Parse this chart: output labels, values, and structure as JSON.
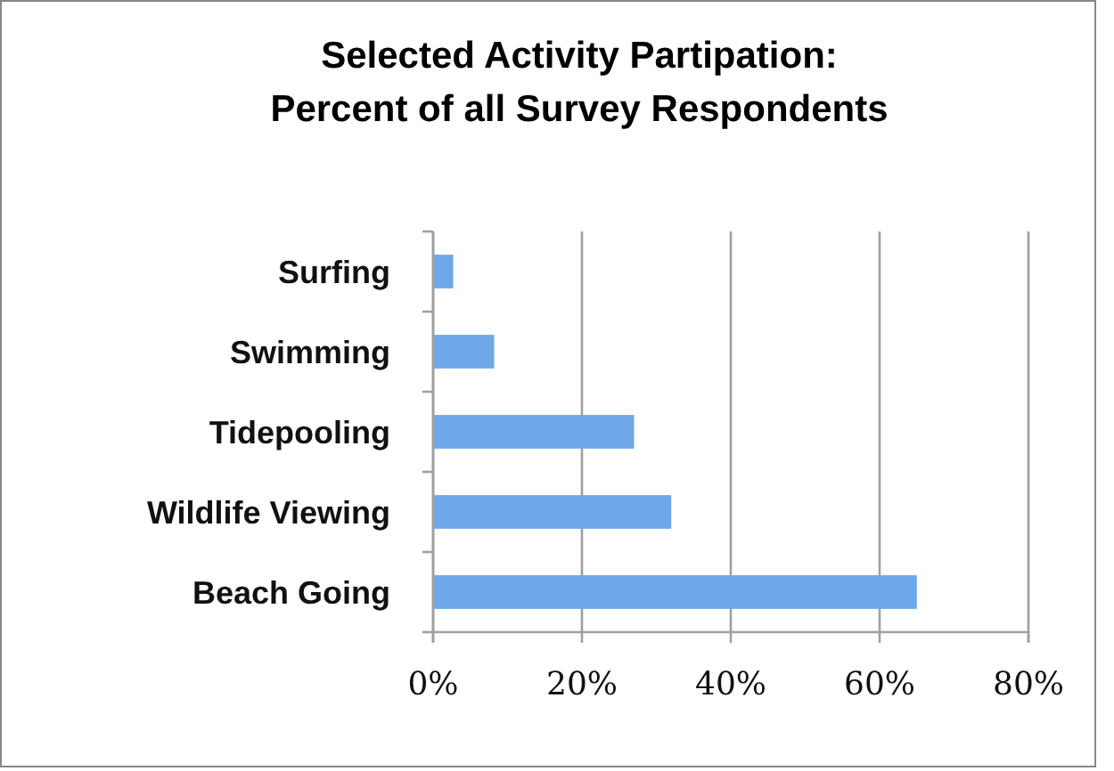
{
  "chart_data": {
    "type": "bar",
    "orientation": "horizontal",
    "title": "Selected Activity Partipation:\nPercent of all Survey Respondents",
    "categories": [
      "Surfing",
      "Swimming",
      "Tidepooling",
      "Wildlife Viewing",
      "Beach Going"
    ],
    "values": [
      2.7,
      8.2,
      27,
      32,
      65
    ],
    "color": "#6fa8e8",
    "xlim": [
      0,
      80
    ],
    "xticks": [
      {
        "value": 0,
        "label": "0%"
      },
      {
        "value": 20,
        "label": "20%"
      },
      {
        "value": 40,
        "label": "40%"
      },
      {
        "value": 60,
        "label": "60%"
      },
      {
        "value": 80,
        "label": "80%"
      }
    ],
    "grid": "x"
  }
}
